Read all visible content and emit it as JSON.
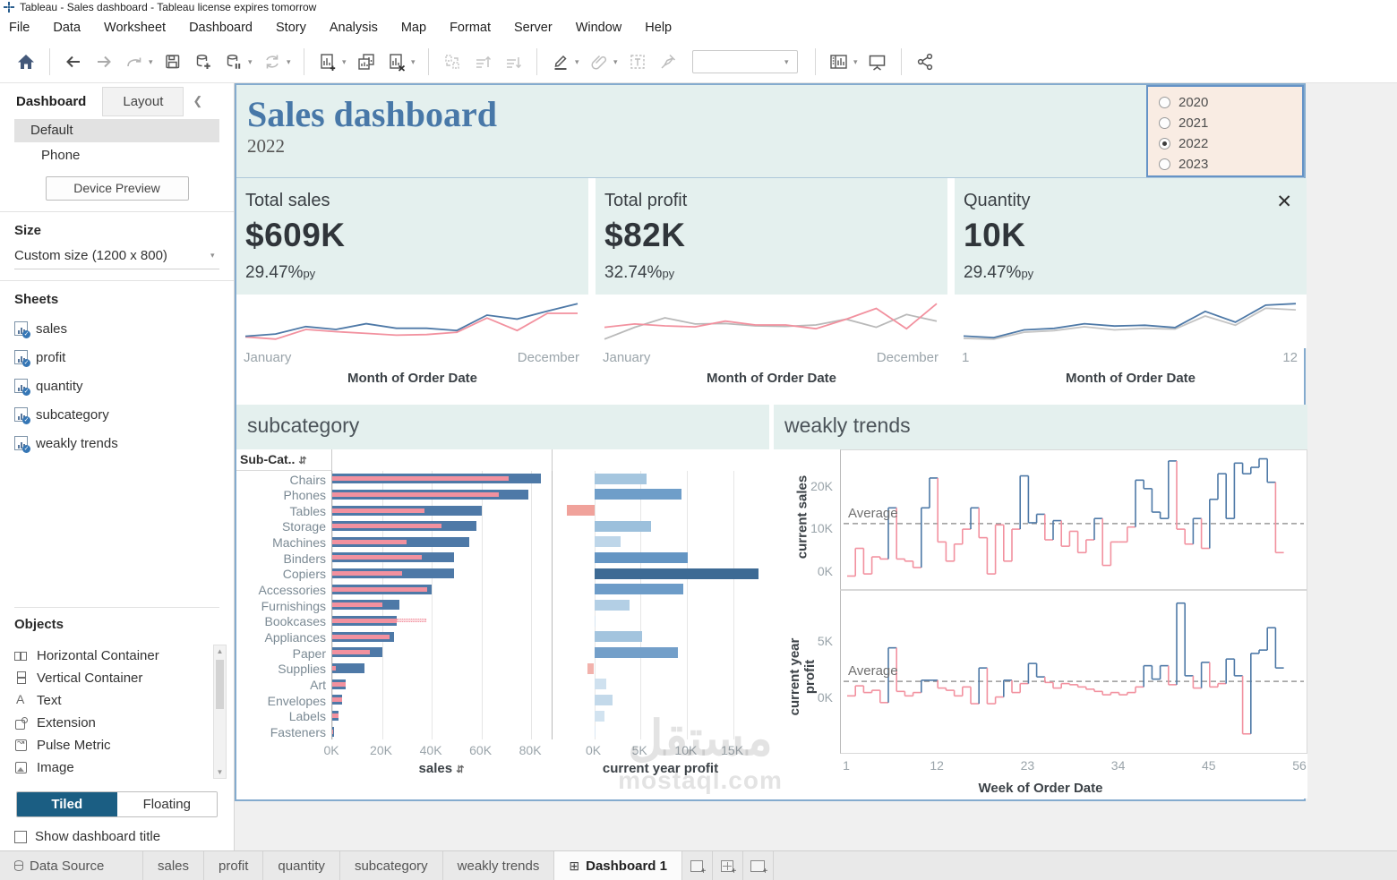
{
  "window": {
    "title": "Tableau - Sales dashboard - Tableau license expires tomorrow"
  },
  "menu": [
    "File",
    "Data",
    "Worksheet",
    "Dashboard",
    "Story",
    "Analysis",
    "Map",
    "Format",
    "Server",
    "Window",
    "Help"
  ],
  "sidebar": {
    "tab_dashboard": "Dashboard",
    "tab_layout": "Layout",
    "devices": [
      "Default",
      "Phone"
    ],
    "selected_device": "Default",
    "device_preview": "Device Preview",
    "size_heading": "Size",
    "size_value": "Custom size (1200 x 800)",
    "sheets_heading": "Sheets",
    "sheets": [
      "sales",
      "profit",
      "quantity",
      "subcategory",
      "weakly trends"
    ],
    "objects_heading": "Objects",
    "objects": [
      {
        "label": "Horizontal Container",
        "icon": "horizontal-container-icon"
      },
      {
        "label": "Vertical Container",
        "icon": "vertical-container-icon"
      },
      {
        "label": "Text",
        "icon": "text-icon"
      },
      {
        "label": "Extension",
        "icon": "extension-icon"
      },
      {
        "label": "Pulse Metric",
        "icon": "pulse-metric-icon"
      },
      {
        "label": "Image",
        "icon": "image-icon"
      }
    ],
    "tiled": "Tiled",
    "floating": "Floating",
    "placement_selected": "Tiled",
    "show_dashboard_title": "Show dashboard title",
    "show_dashboard_title_checked": false
  },
  "dashboard": {
    "title": "Sales dashboard",
    "subtitle": "2022",
    "year_filter": {
      "options": [
        "2020",
        "2021",
        "2022",
        "2023"
      ],
      "selected": "2022"
    },
    "kpis": [
      {
        "label": "Total sales",
        "value": "$609K",
        "delta": "29.47%",
        "delta_unit": "py",
        "x_start": "January",
        "x_end": "December",
        "axis_title": "Month of Order Date"
      },
      {
        "label": "Total profit",
        "value": "$82K",
        "delta": "32.74%",
        "delta_unit": "py",
        "x_start": "January",
        "x_end": "December",
        "axis_title": "Month of Order Date"
      },
      {
        "label": "Quantity",
        "value": "10K",
        "delta": "29.47%",
        "delta_unit": "py",
        "x_start": "1",
        "x_end": "12",
        "axis_title": "Month of Order Date"
      }
    ],
    "subcategory": {
      "title": "subcategory",
      "col_header": "Sub-Cat..",
      "sales_axis_title": "sales",
      "profit_axis_title": "current year profit"
    },
    "weekly": {
      "title": "weakly trends",
      "sales_axis_label": "current sales",
      "profit_axis_label": "current year profit",
      "average_label": "Average",
      "x_axis_title": "Week of Order Date"
    }
  },
  "tabbar": {
    "data_source": "Data Source",
    "sheet_tabs": [
      "sales",
      "profit",
      "quantity",
      "subcategory",
      "weakly trends"
    ],
    "active_tab": "Dashboard 1"
  },
  "watermark": {
    "line1": "مستقل",
    "line2": "mostaql.com"
  },
  "colors": {
    "blue": "#4e79a7",
    "pink": "#f2919f",
    "gray": "#b9b9b9",
    "pale": "#e4f0ee",
    "peach": "#f9ece3",
    "negative": "#f0a29b",
    "average_line": "#9a9a9a"
  },
  "chart_data": [
    {
      "id": "kpi-sales-sparkline",
      "type": "line",
      "xlabel": "Month of Order Date",
      "x_range": [
        "January",
        "December"
      ],
      "series": [
        {
          "name": "previous year sales",
          "color": "#f2919f",
          "values": [
            37,
            33,
            50,
            46,
            43,
            40,
            41,
            45,
            70,
            48,
            78,
            78
          ]
        },
        {
          "name": "current year sales",
          "color": "#4e79a7",
          "values": [
            38,
            42,
            55,
            50,
            60,
            52,
            52,
            48,
            75,
            68,
            82,
            95
          ]
        }
      ]
    },
    {
      "id": "kpi-profit-sparkline",
      "type": "line",
      "xlabel": "Month of Order Date",
      "x_range": [
        "January",
        "December"
      ],
      "series": [
        {
          "name": "current year profit",
          "color": "#b9b9b9",
          "values": [
            20,
            45,
            65,
            52,
            53,
            48,
            47,
            50,
            62,
            45,
            72,
            58
          ]
        },
        {
          "name": "previous year profit",
          "color": "#f2919f",
          "values": [
            45,
            52,
            48,
            46,
            58,
            50,
            50,
            42,
            62,
            85,
            42,
            95
          ]
        }
      ]
    },
    {
      "id": "kpi-quantity-sparkline",
      "type": "line",
      "xlabel": "Month of Order Date",
      "x_range": [
        "1",
        "12"
      ],
      "series": [
        {
          "name": "previous year quantity",
          "color": "#c4c4c4",
          "values": [
            27,
            26,
            35,
            37,
            42,
            38,
            40,
            39,
            56,
            44,
            66,
            64
          ]
        },
        {
          "name": "current year quantity",
          "color": "#4e79a7",
          "values": [
            30,
            28,
            38,
            40,
            46,
            43,
            44,
            41,
            62,
            48,
            70,
            72
          ]
        }
      ]
    },
    {
      "id": "subcategory-bars",
      "type": "bar",
      "orientation": "horizontal",
      "categories": [
        "Chairs",
        "Phones",
        "Tables",
        "Storage",
        "Machines",
        "Binders",
        "Copiers",
        "Accessories",
        "Furnishings",
        "Bookcases",
        "Appliances",
        "Paper",
        "Supplies",
        "Art",
        "Envelopes",
        "Labels",
        "Fasteners"
      ],
      "series": [
        {
          "name": "sales current year (K)",
          "color": "#4e79a7",
          "values": [
            84,
            79,
            60,
            58,
            55,
            49,
            49,
            40,
            27,
            26,
            25,
            20,
            13,
            5.5,
            4,
            2.5,
            0.8
          ]
        },
        {
          "name": "sales previous year (K)",
          "color": "#f2919f",
          "values": [
            71,
            67,
            37,
            44,
            30,
            36,
            28,
            38,
            20,
            38,
            23,
            15,
            1.5,
            5.5,
            4,
            2.5,
            0.5
          ]
        },
        {
          "name": "current year profit (K)",
          "values": [
            5.7,
            9.4,
            -3,
            6.1,
            2.8,
            10.1,
            17.7,
            9.6,
            3.8,
            0.05,
            5.2,
            9,
            -0.7,
            1.3,
            2,
            1.1,
            0.1
          ],
          "colors": [
            "#a5c6df",
            "#6f9ec9",
            "#f0a29b",
            "#9cc0dc",
            "#bed6e9",
            "#6495c3",
            "#3d6a94",
            "#6d9cc8",
            "#b3cfe5",
            "#d6e5f2",
            "#a3c4de",
            "#739fc9",
            "#f2b2ac",
            "#cfe1ef",
            "#c3d9ea",
            "#d2e3f0",
            "#dae7f3"
          ]
        }
      ],
      "sales_axis": {
        "ticks": [
          0,
          20,
          40,
          60,
          80
        ],
        "tick_labels": [
          "0K",
          "20K",
          "40K",
          "60K",
          "80K"
        ],
        "max": 88.6
      },
      "profit_axis": {
        "ticks": [
          0,
          5,
          10,
          15
        ],
        "tick_labels": [
          "0K",
          "5K",
          "10K",
          "15K"
        ],
        "min": -4.5,
        "max": 19
      }
    },
    {
      "id": "weekly-sales-steps",
      "type": "line",
      "subtype": "step",
      "ylabel": "current sales",
      "average": 11.3,
      "y_min": -3,
      "y_max": 28.5,
      "y_ticks": [
        0,
        10,
        20
      ],
      "y_tick_labels": [
        "0K",
        "10K",
        "20K"
      ],
      "x_ticks": [
        1,
        12,
        23,
        34,
        45,
        56
      ],
      "x_max": 56,
      "values": [
        -1,
        5.5,
        -0.5,
        3.5,
        3,
        15,
        3,
        2.5,
        1,
        15,
        22,
        7,
        2.5,
        6.5,
        10,
        15,
        8,
        -0.5,
        11,
        2.5,
        10,
        22.5,
        11.5,
        13.5,
        7.5,
        12,
        6,
        9.5,
        4.5,
        7.5,
        12.5,
        1.5,
        7,
        7,
        10.5,
        21.5,
        19.5,
        14,
        12.5,
        26,
        10,
        6.5,
        12.5,
        5.5,
        17,
        23,
        12.5,
        25.5,
        23,
        24.5,
        26.5,
        21,
        4.5
      ]
    },
    {
      "id": "weekly-profit-steps",
      "type": "line",
      "subtype": "step",
      "ylabel": "current year profit",
      "average": 1.5,
      "y_min": -4.5,
      "y_max": 9.6,
      "y_ticks": [
        0,
        5
      ],
      "y_tick_labels": [
        "0K",
        "5K"
      ],
      "x_ticks": [
        1,
        12,
        23,
        34,
        45,
        56
      ],
      "x_max": 56,
      "values": [
        0.2,
        1.1,
        0.5,
        0.7,
        -0.4,
        4.5,
        0.6,
        0.2,
        0.5,
        1.6,
        1.6,
        0.9,
        0.7,
        0.2,
        1.0,
        -0.5,
        2.7,
        -0.5,
        0.1,
        1.6,
        0.5,
        1.3,
        3.1,
        1.9,
        1.4,
        0.9,
        1.3,
        1.2,
        1.0,
        0.8,
        0.6,
        0.3,
        0.5,
        0.3,
        0.5,
        1.0,
        2.9,
        1.7,
        2.9,
        1.2,
        8.5,
        2.0,
        0.9,
        3.2,
        1.0,
        1.3,
        3.5,
        2.0,
        -3.2,
        4.0,
        4.3,
        6.3,
        2.7
      ]
    }
  ]
}
